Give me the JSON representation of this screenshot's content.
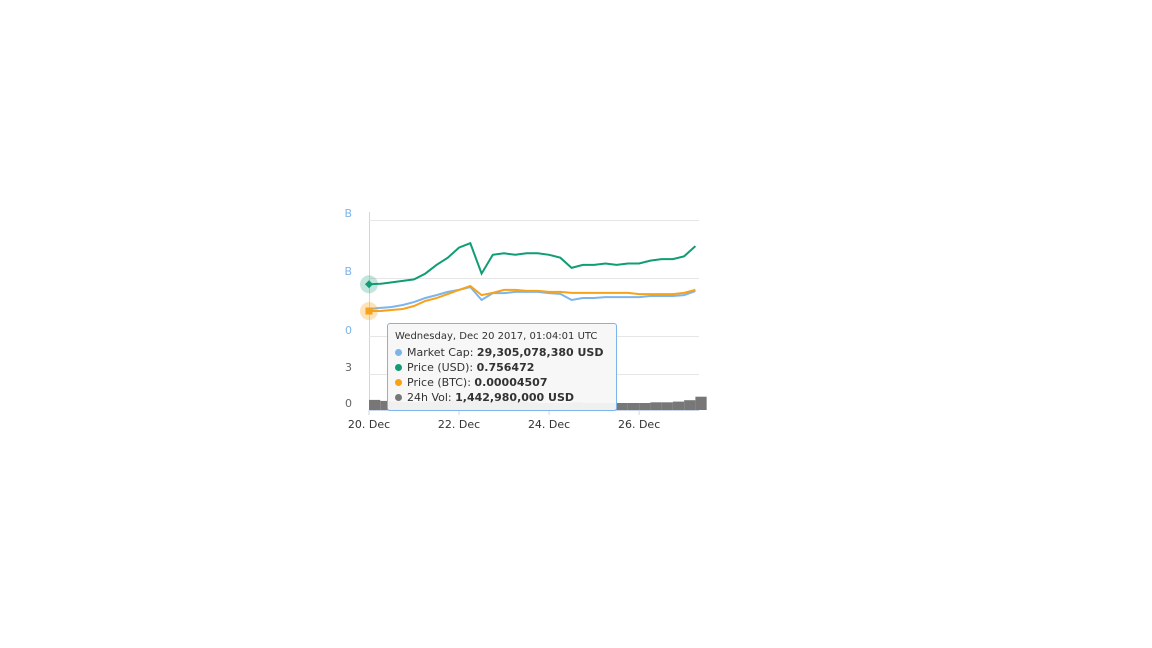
{
  "chart_data": {
    "type": "line",
    "axis_label_fragments": [
      "B",
      "B",
      "0",
      "3",
      "0"
    ],
    "x": [
      20,
      20.25,
      20.5,
      20.75,
      21,
      21.25,
      21.5,
      21.75,
      22,
      22.25,
      22.5,
      22.75,
      23,
      23.25,
      23.5,
      23.75,
      24,
      24.25,
      24.5,
      24.75,
      25,
      25.25,
      25.5,
      25.75,
      26,
      26.25,
      26.5,
      26.75,
      27,
      27.25
    ],
    "xlim": [
      20,
      27.33
    ],
    "xticks": [
      {
        "value": 20,
        "label": "20. Dec"
      },
      {
        "value": 22,
        "label": "22. Dec"
      },
      {
        "value": 24,
        "label": "24. Dec"
      },
      {
        "value": 26,
        "label": "26. Dec"
      }
    ],
    "series": [
      {
        "color": "#7cb5ec",
        "ylim": [
          20000000000,
          60000000000
        ],
        "values": [
          29305078380,
          29700000000,
          30000000000,
          30700000000,
          31700000000,
          33100000000,
          34100000000,
          35200000000,
          35900000000,
          36900000000,
          32400000000,
          34800000000,
          34800000000,
          35200000000,
          35200000000,
          35200000000,
          34800000000,
          34500000000,
          32400000000,
          33100000000,
          33100000000,
          33400000000,
          33400000000,
          33400000000,
          33400000000,
          33800000000,
          33800000000,
          33800000000,
          34100000000,
          35500000000
        ]
      },
      {
        "color": "#109c74",
        "ylim": [
          0.4,
          1.2
        ],
        "values": [
          0.756472,
          0.76,
          0.77,
          0.78,
          0.79,
          0.83,
          0.89,
          0.94,
          1.01,
          1.04,
          0.83,
          0.96,
          0.97,
          0.96,
          0.97,
          0.97,
          0.96,
          0.94,
          0.87,
          0.89,
          0.89,
          0.9,
          0.89,
          0.9,
          0.9,
          0.92,
          0.93,
          0.93,
          0.95,
          1.02
        ]
      },
      {
        "color": "#f7a21b",
        "ylim": [
          3e-05,
          0.0001
        ],
        "values": [
          4.507e-05,
          4.51e-05,
          4.57e-05,
          4.63e-05,
          4.81e-05,
          5.11e-05,
          5.29e-05,
          5.53e-05,
          5.78e-05,
          6.02e-05,
          5.47e-05,
          5.6e-05,
          5.78e-05,
          5.78e-05,
          5.72e-05,
          5.72e-05,
          5.66e-05,
          5.66e-05,
          5.6e-05,
          5.6e-05,
          5.6e-05,
          5.6e-05,
          5.6e-05,
          5.6e-05,
          5.53e-05,
          5.53e-05,
          5.53e-05,
          5.53e-05,
          5.6e-05,
          5.78e-05
        ]
      },
      {
        "type": "bar",
        "color": "#777777",
        "ylim": [
          0,
          10000000000
        ],
        "values": [
          1442980000,
          1300000000,
          1200000000,
          1100000000,
          1100000000,
          1200000000,
          1300000000,
          1400000000,
          1500000000,
          1600000000,
          1500000000,
          1400000000,
          1300000000,
          1200000000,
          1100000000,
          1000000000,
          1000000000,
          1000000000,
          1100000000,
          1000000000,
          1000000000,
          1000000000,
          1000000000,
          1000000000,
          1000000000,
          1100000000,
          1100000000,
          1200000000,
          1400000000,
          1900000000
        ]
      }
    ],
    "tooltip": {
      "title": "Wednesday, Dec 20 2017, 01:04:01 UTC",
      "items": [
        {
          "label": "Market Cap:",
          "value": "29,305,078,380 USD",
          "color": "#7cb5ec"
        },
        {
          "label": "Price (USD):",
          "value": "0.756472",
          "color": "#109c74"
        },
        {
          "label": "Price (BTC):",
          "value": "0.00004507",
          "color": "#f7a21b"
        },
        {
          "label": "24h Vol:",
          "value": "1,442,980,000 USD",
          "color": "#777777"
        }
      ]
    }
  }
}
